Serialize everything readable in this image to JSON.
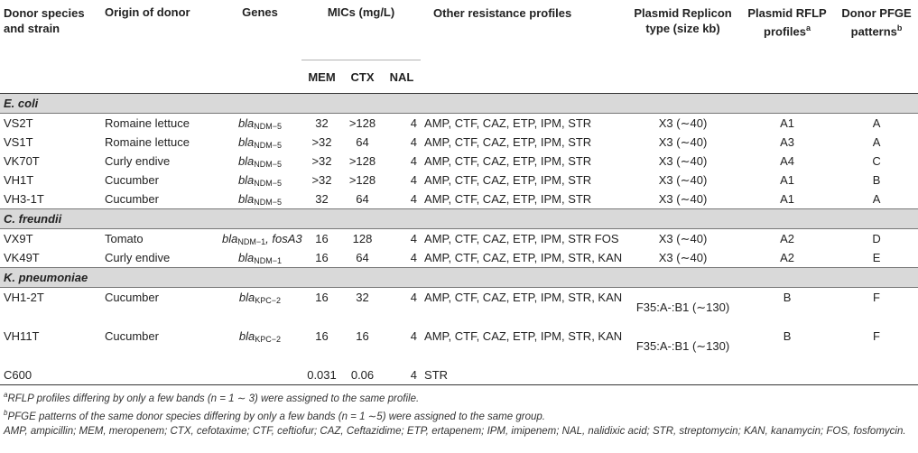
{
  "headers": {
    "donor": "Donor species and strain",
    "origin": "Origin of donor",
    "genes": "Genes",
    "mics": "MICs (mg/L)",
    "mem": "MEM",
    "ctx": "CTX",
    "nal": "NAL",
    "other": "Other resistance profiles",
    "replicon": "Plasmid Replicon type (size kb)",
    "rflp": "Plasmid RFLP profiles",
    "rflp_sup": "a",
    "pfge": "Donor PFGE patterns",
    "pfge_sup": "b"
  },
  "groups": [
    {
      "name": "E. coli",
      "rows": [
        {
          "strain": "VS2T",
          "origin": "Romaine lettuce",
          "gene_prefix": "bla",
          "gene_sub": "NDM−5",
          "gene_extra": "",
          "mem": "32",
          "ctx": ">128",
          "nal": "4",
          "other": "AMP, CTF, CAZ, ETP, IPM, STR",
          "replicon": "X3 (∼40)",
          "rflp": "A1",
          "pfge": "A"
        },
        {
          "strain": "VS1T",
          "origin": "Romaine lettuce",
          "gene_prefix": "bla",
          "gene_sub": "NDM−5",
          "gene_extra": "",
          "mem": ">32",
          "ctx": "64",
          "nal": "4",
          "other": "AMP, CTF, CAZ, ETP, IPM, STR",
          "replicon": "X3 (∼40)",
          "rflp": "A3",
          "pfge": "A"
        },
        {
          "strain": "VK70T",
          "origin": "Curly endive",
          "gene_prefix": "bla",
          "gene_sub": "NDM−5",
          "gene_extra": "",
          "mem": ">32",
          "ctx": ">128",
          "nal": "4",
          "other": "AMP, CTF, CAZ, ETP, IPM, STR",
          "replicon": "X3 (∼40)",
          "rflp": "A4",
          "pfge": "C"
        },
        {
          "strain": "VH1T",
          "origin": "Cucumber",
          "gene_prefix": "bla",
          "gene_sub": "NDM−5",
          "gene_extra": "",
          "mem": ">32",
          "ctx": ">128",
          "nal": "4",
          "other": "AMP, CTF, CAZ, ETP, IPM, STR",
          "replicon": "X3 (∼40)",
          "rflp": "A1",
          "pfge": "B"
        },
        {
          "strain": "VH3-1T",
          "origin": "Cucumber",
          "gene_prefix": "bla",
          "gene_sub": "NDM−5",
          "gene_extra": "",
          "mem": "32",
          "ctx": "64",
          "nal": "4",
          "other": "AMP, CTF, CAZ, ETP, IPM, STR",
          "replicon": "X3 (∼40)",
          "rflp": "A1",
          "pfge": "A"
        }
      ]
    },
    {
      "name": "C. freundii",
      "rows": [
        {
          "strain": "VX9T",
          "origin": "Tomato",
          "gene_prefix": "bla",
          "gene_sub": "NDM−1",
          "gene_extra": ", fosA3",
          "mem": "16",
          "ctx": "128",
          "nal": "4",
          "other": "AMP, CTF, CAZ, ETP, IPM, STR FOS",
          "replicon": "X3 (∼40)",
          "rflp": "A2",
          "pfge": "D"
        },
        {
          "strain": "VK49T",
          "origin": "Curly endive",
          "gene_prefix": "bla",
          "gene_sub": "NDM−1",
          "gene_extra": "",
          "mem": "16",
          "ctx": "64",
          "nal": "4",
          "other": "AMP, CTF, CAZ, ETP, IPM, STR, KAN",
          "replicon": "X3 (∼40)",
          "rflp": "A2",
          "pfge": "E"
        }
      ]
    },
    {
      "name": "K. pneumoniae",
      "rows": [
        {
          "strain": "VH1-2T",
          "origin": "Cucumber",
          "gene_prefix": "bla",
          "gene_sub": "KPC−2",
          "gene_extra": "",
          "mem": "16",
          "ctx": "32",
          "nal": "4",
          "other": "AMP, CTF, CAZ, ETP, IPM, STR, KAN",
          "replicon": "F35:A-:B1 (∼130)",
          "rflp": "B",
          "pfge": "F"
        },
        {
          "strain": "VH11T",
          "origin": "Cucumber",
          "gene_prefix": "bla",
          "gene_sub": "KPC−2",
          "gene_extra": "",
          "mem": "16",
          "ctx": "16",
          "nal": "4",
          "other": "AMP, CTF, CAZ, ETP, IPM, STR, KAN",
          "replicon": "F35:A-:B1 (∼130)",
          "rflp": "B",
          "pfge": "F"
        }
      ]
    }
  ],
  "control": {
    "strain": "C600",
    "mem": "0.031",
    "ctx": "0.06",
    "nal": "4",
    "other": "STR"
  },
  "footnotes": {
    "a_mark": "a",
    "a": "RFLP profiles differing by only a few bands (n = 1 ∼ 3) were assigned to the same profile.",
    "b_mark": "b",
    "b": "PFGE patterns of the same donor species differing by only a few bands (n = 1 ∼5) were assigned to the same group.",
    "abbrev": "AMP, ampicillin; MEM, meropenem; CTX, cefotaxime; CTF, ceftiofur; CAZ, Ceftazidime; ETP, ertapenem; IPM, imipenem; NAL, nalidixic acid; STR, streptomycin; KAN, kanamycin; FOS, fosfomycin."
  }
}
